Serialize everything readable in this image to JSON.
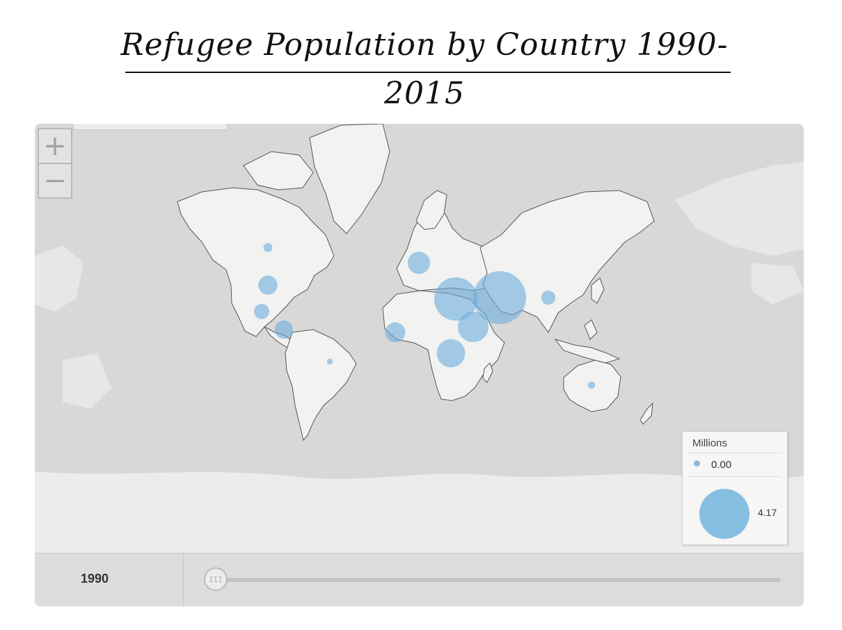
{
  "title": "Refugee Population by Country 1990-2015",
  "map": {
    "zoom_in_label": "+",
    "zoom_out_label": "−",
    "bubble_color": "#6aaede",
    "land_color": "#f2f2f1",
    "water_color": "#d9d8d6",
    "bubbles": [
      {
        "region": "Canada",
        "value": 0.12
      },
      {
        "region": "United States",
        "value": 0.55
      },
      {
        "region": "Mexico",
        "value": 0.35
      },
      {
        "region": "Central America",
        "value": 0.5
      },
      {
        "region": "Europe",
        "value": 0.75
      },
      {
        "region": "West Africa",
        "value": 0.6
      },
      {
        "region": "Central Africa",
        "value": 1.2
      },
      {
        "region": "East Africa",
        "value": 1.4
      },
      {
        "region": "Iran",
        "value": 2.8
      },
      {
        "region": "Pakistan",
        "value": 4.17
      },
      {
        "region": "China",
        "value": 0.3
      },
      {
        "region": "South America",
        "value": 0.05
      },
      {
        "region": "Australia",
        "value": 0.08
      }
    ]
  },
  "legend": {
    "title": "Millions",
    "min_label": "0.00",
    "max_label": "4.17"
  },
  "timeline": {
    "year": "1990",
    "position": 0,
    "handle_glyph": "III"
  }
}
